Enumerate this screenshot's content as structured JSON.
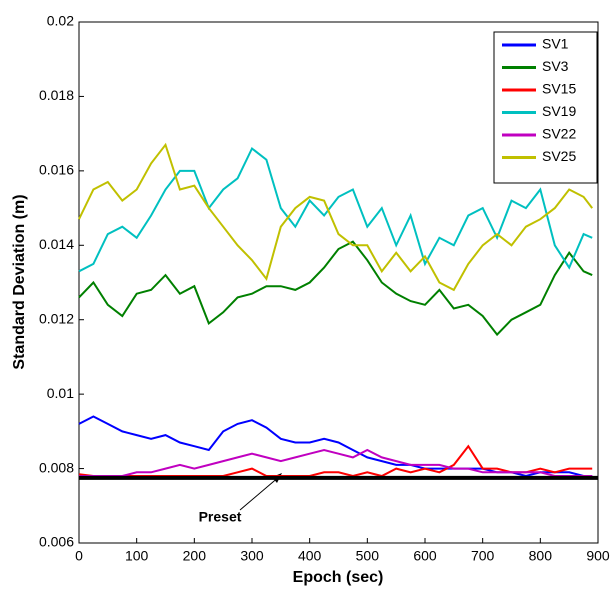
{
  "chart_data": {
    "type": "line",
    "x_label": "Epoch (sec)",
    "y_label": "Standard Deviation (m)",
    "xlim": [
      0,
      900
    ],
    "xticks": [
      0,
      100,
      200,
      300,
      400,
      500,
      600,
      700,
      800,
      900
    ],
    "ylim": [
      0.006,
      0.02
    ],
    "yticks": [
      0.006,
      0.008,
      0.01,
      0.012,
      0.014,
      0.016,
      0.018,
      0.02
    ],
    "legend": "upper right",
    "x": [
      0,
      25,
      50,
      75,
      100,
      125,
      150,
      175,
      200,
      225,
      250,
      275,
      300,
      325,
      350,
      375,
      400,
      425,
      450,
      475,
      500,
      525,
      550,
      575,
      600,
      625,
      650,
      675,
      700,
      725,
      750,
      775,
      800,
      825,
      850,
      875,
      890
    ],
    "series": [
      {
        "name": "SV1",
        "color": "#0000ff",
        "values": [
          0.0092,
          0.0094,
          0.0092,
          0.009,
          0.0089,
          0.0088,
          0.0089,
          0.0087,
          0.0086,
          0.0085,
          0.009,
          0.0092,
          0.0093,
          0.0091,
          0.0088,
          0.0087,
          0.0087,
          0.0088,
          0.0087,
          0.0085,
          0.0083,
          0.0082,
          0.0081,
          0.0081,
          0.008,
          0.008,
          0.008,
          0.008,
          0.008,
          0.0079,
          0.0079,
          0.0078,
          0.0079,
          0.0079,
          0.0079,
          0.0078,
          0.0078
        ]
      },
      {
        "name": "SV3",
        "color": "#008000",
        "values": [
          0.0126,
          0.013,
          0.0124,
          0.0121,
          0.0127,
          0.0128,
          0.0132,
          0.0127,
          0.0129,
          0.0119,
          0.0122,
          0.0126,
          0.0127,
          0.0129,
          0.0129,
          0.0128,
          0.013,
          0.0134,
          0.0139,
          0.0141,
          0.0136,
          0.013,
          0.0127,
          0.0125,
          0.0124,
          0.0128,
          0.0123,
          0.0124,
          0.0121,
          0.0116,
          0.012,
          0.0122,
          0.0124,
          0.0132,
          0.0138,
          0.0133,
          0.0132
        ]
      },
      {
        "name": "SV15",
        "color": "#ff0000",
        "values": [
          0.00785,
          0.0078,
          0.0078,
          0.0078,
          0.0078,
          0.0078,
          0.0078,
          0.0078,
          0.0078,
          0.0078,
          0.0078,
          0.0079,
          0.008,
          0.0078,
          0.0078,
          0.0078,
          0.0078,
          0.0079,
          0.0079,
          0.0078,
          0.0079,
          0.0078,
          0.008,
          0.0079,
          0.008,
          0.0079,
          0.0081,
          0.0086,
          0.008,
          0.008,
          0.0079,
          0.0079,
          0.008,
          0.0079,
          0.008,
          0.008,
          0.008
        ]
      },
      {
        "name": "SV19",
        "color": "#00c0c0",
        "values": [
          0.0133,
          0.0135,
          0.0143,
          0.0145,
          0.0142,
          0.0148,
          0.0155,
          0.016,
          0.016,
          0.015,
          0.0155,
          0.0158,
          0.0166,
          0.0163,
          0.015,
          0.0145,
          0.0152,
          0.0148,
          0.0153,
          0.0155,
          0.0145,
          0.015,
          0.014,
          0.0148,
          0.0135,
          0.0142,
          0.014,
          0.0148,
          0.015,
          0.0142,
          0.0152,
          0.015,
          0.0155,
          0.014,
          0.0134,
          0.0143,
          0.0142
        ]
      },
      {
        "name": "SV22",
        "color": "#c000c0",
        "values": [
          0.0078,
          0.0078,
          0.0078,
          0.0078,
          0.0079,
          0.0079,
          0.008,
          0.0081,
          0.008,
          0.0081,
          0.0082,
          0.0083,
          0.0084,
          0.0083,
          0.0082,
          0.0083,
          0.0084,
          0.0085,
          0.0084,
          0.0083,
          0.0085,
          0.0083,
          0.0082,
          0.0081,
          0.0081,
          0.0081,
          0.008,
          0.008,
          0.0079,
          0.0079,
          0.0079,
          0.0079,
          0.0079,
          0.0078,
          0.0078,
          0.0078,
          0.0078
        ]
      },
      {
        "name": "SV25",
        "color": "#c0c000",
        "values": [
          0.0147,
          0.0155,
          0.0157,
          0.0152,
          0.0155,
          0.0162,
          0.0167,
          0.0155,
          0.0156,
          0.015,
          0.0145,
          0.014,
          0.0136,
          0.0131,
          0.0145,
          0.015,
          0.0153,
          0.0152,
          0.0143,
          0.014,
          0.014,
          0.0133,
          0.0138,
          0.0133,
          0.0137,
          0.013,
          0.0128,
          0.0135,
          0.014,
          0.0143,
          0.014,
          0.0145,
          0.0147,
          0.015,
          0.0155,
          0.0153,
          0.015
        ]
      }
    ],
    "reference_line": {
      "label": "Preset",
      "value": 0.00775,
      "color": "#000000"
    }
  }
}
